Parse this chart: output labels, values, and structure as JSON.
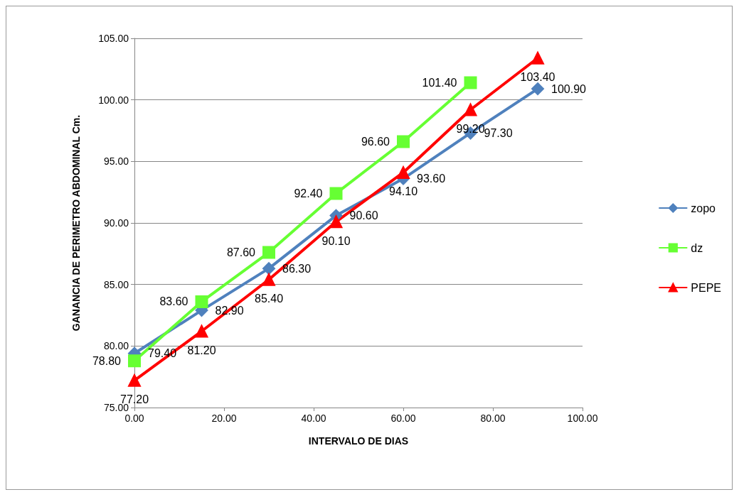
{
  "chart_data": {
    "type": "line",
    "xlabel": "INTERVALO DE DIAS",
    "ylabel": "GANANCIA DE PERIMETRO ABDOMINAL Cm.",
    "x": [
      0,
      15,
      30,
      45,
      60,
      75,
      90
    ],
    "series": [
      {
        "name": "zopo",
        "color": "#4f81bd",
        "marker": "diamond",
        "values": [
          79.4,
          82.9,
          86.3,
          90.6,
          93.6,
          97.3,
          100.9
        ],
        "value_labels": [
          "79.40",
          "82.90",
          "86.30",
          "90.60",
          "93.60",
          "97.30",
          "100.90"
        ]
      },
      {
        "name": "dz",
        "color": "#66ff33",
        "marker": "square",
        "values": [
          78.8,
          83.6,
          87.6,
          92.4,
          96.6,
          101.4,
          null
        ],
        "value_labels": [
          "78.80",
          "83.60",
          "87.60",
          "92.40",
          "96.60",
          "101.40",
          null
        ]
      },
      {
        "name": "PEPE",
        "color": "#ff0000",
        "marker": "triangle",
        "values": [
          77.2,
          81.2,
          85.4,
          90.1,
          94.1,
          99.2,
          103.4
        ],
        "value_labels": [
          "77.20",
          "81.20",
          "85.40",
          "90.10",
          "94.10",
          "99.20",
          "103.40"
        ]
      }
    ],
    "xlim": [
      0,
      100
    ],
    "xticks": [
      {
        "value": 0,
        "label": "0.00"
      },
      {
        "value": 20,
        "label": "20.00"
      },
      {
        "value": 40,
        "label": "40.00"
      },
      {
        "value": 60,
        "label": "60.00"
      },
      {
        "value": 80,
        "label": "80.00"
      },
      {
        "value": 100,
        "label": "100.00"
      }
    ],
    "ylim": [
      75,
      105
    ],
    "yticks": [
      {
        "value": 75,
        "label": "75.00"
      },
      {
        "value": 80,
        "label": "80.00"
      },
      {
        "value": 85,
        "label": "85.00"
      },
      {
        "value": 90,
        "label": "90.00"
      },
      {
        "value": 95,
        "label": "95.00"
      },
      {
        "value": 100,
        "label": "100.00"
      },
      {
        "value": 105,
        "label": "105.00"
      }
    ],
    "grid": "y",
    "legend": "right"
  }
}
